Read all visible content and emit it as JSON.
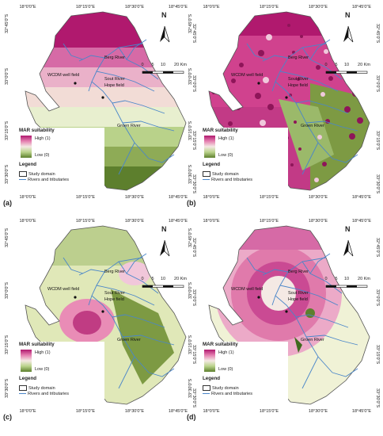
{
  "panels": [
    {
      "tag": "(a)"
    },
    {
      "tag": "(b)"
    },
    {
      "tag": "(c)"
    },
    {
      "tag": "(d)"
    }
  ],
  "axes": {
    "top_labels": [
      "18°0'0\"E",
      "18°15'0\"E",
      "18°30'0\"E",
      "18°45'0\"E"
    ],
    "left_labels": [
      "32°45'0\"S",
      "33°0'0\"S",
      "33°15'0\"S",
      "33°30'0\"S"
    ],
    "right_labels": [
      "32°45'0\"S",
      "33°0'0\"S",
      "33°15'0\"S",
      "33°30'0\"S"
    ],
    "bottom_labels": [
      "18°0'0\"E",
      "18°15'0\"E",
      "18°30'0\"E",
      "18°45'0\"E"
    ]
  },
  "map_labels": {
    "berg_river": "Berg River",
    "wcdm_well_field": "WCDM well field",
    "sout_river": "Sout River",
    "hope_field": "Hope field",
    "groen_river": "Groen River"
  },
  "scalebar": {
    "ticks": [
      "0",
      "5",
      "10",
      "20 Km"
    ]
  },
  "north": "N",
  "legend": {
    "title": "MAR suitability",
    "high": "High (1)",
    "low": "Low (0)",
    "section": "Legend",
    "study_domain": "Study domain",
    "rivers": "Rivers and tributaries"
  },
  "colors": {
    "high": "#b0196e",
    "mid": "#f4e9e4",
    "low": "#5d7f2d",
    "river": "#4a86c9"
  }
}
